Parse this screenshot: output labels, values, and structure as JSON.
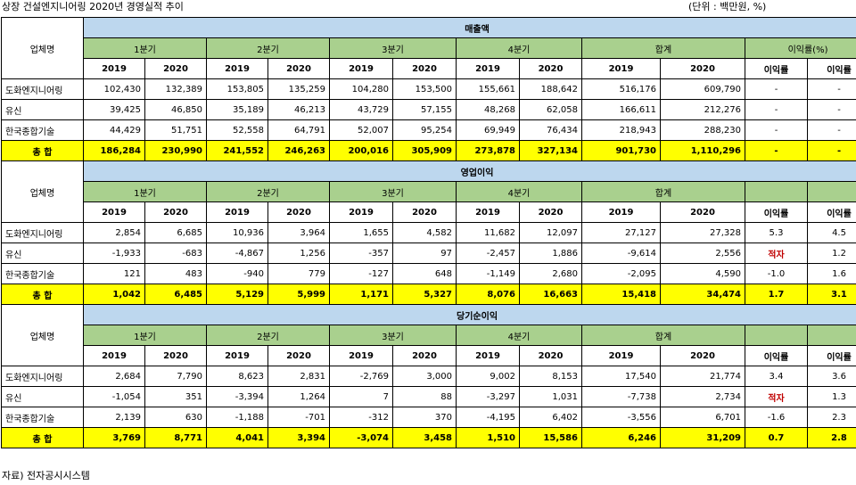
{
  "title": "상장 건설엔지니어링 2020년 경영실적 추이",
  "unit": "(단위 : 백만원, %)",
  "source": "자료) 전자공시시스템",
  "header": {
    "company_label": "업체명",
    "quarters": [
      "1분기",
      "2분기",
      "3분기",
      "4분기",
      "합계"
    ],
    "ratio_group_label": "이익률(%)",
    "years": [
      "2019",
      "2020"
    ],
    "ratio_label": "이익률"
  },
  "sections": [
    {
      "title": "매출액",
      "rows": [
        {
          "name": "도화엔지니어링",
          "values": [
            "102,430",
            "132,389",
            "153,805",
            "135,259",
            "104,280",
            "153,500",
            "155,661",
            "188,642",
            "516,176",
            "609,790"
          ],
          "ratios": [
            "-",
            "-"
          ]
        },
        {
          "name": "유신",
          "values": [
            "39,425",
            "46,850",
            "35,189",
            "46,213",
            "43,729",
            "57,155",
            "48,268",
            "62,058",
            "166,611",
            "212,276"
          ],
          "ratios": [
            "-",
            "-"
          ]
        },
        {
          "name": "한국종합기술",
          "values": [
            "44,429",
            "51,751",
            "52,558",
            "64,791",
            "52,007",
            "95,254",
            "69,949",
            "76,434",
            "218,943",
            "288,230"
          ],
          "ratios": [
            "-",
            "-"
          ]
        },
        {
          "name": "총 합",
          "total": true,
          "values": [
            "186,284",
            "230,990",
            "241,552",
            "246,263",
            "200,016",
            "305,909",
            "273,878",
            "327,134",
            "901,730",
            "1,110,296"
          ],
          "ratios": [
            "-",
            "-"
          ]
        }
      ]
    },
    {
      "title": "영업이익",
      "rows": [
        {
          "name": "도화엔지니어링",
          "values": [
            "2,854",
            "6,685",
            "10,936",
            "3,964",
            "1,655",
            "4,582",
            "11,682",
            "12,097",
            "27,127",
            "27,328"
          ],
          "ratios": [
            "5.3",
            "4.5"
          ]
        },
        {
          "name": "유신",
          "values": [
            "-1,933",
            "-683",
            "-4,867",
            "1,256",
            "-357",
            "97",
            "-2,457",
            "1,886",
            "-9,614",
            "2,556"
          ],
          "ratios": [
            "적자",
            "1.2"
          ]
        },
        {
          "name": "한국종합기술",
          "values": [
            "121",
            "483",
            "-940",
            "779",
            "-127",
            "648",
            "-1,149",
            "2,680",
            "-2,095",
            "4,590"
          ],
          "ratios": [
            "-1.0",
            "1.6"
          ]
        },
        {
          "name": "총 합",
          "total": true,
          "values": [
            "1,042",
            "6,485",
            "5,129",
            "5,999",
            "1,171",
            "5,327",
            "8,076",
            "16,663",
            "15,418",
            "34,474"
          ],
          "ratios": [
            "1.7",
            "3.1"
          ]
        }
      ]
    },
    {
      "title": "당기순이익",
      "rows": [
        {
          "name": "도화엔지니어링",
          "values": [
            "2,684",
            "7,790",
            "8,623",
            "2,831",
            "-2,769",
            "3,000",
            "9,002",
            "8,153",
            "17,540",
            "21,774"
          ],
          "ratios": [
            "3.4",
            "3.6"
          ]
        },
        {
          "name": "유신",
          "values": [
            "-1,054",
            "351",
            "-3,394",
            "1,264",
            "7",
            "88",
            "-3,297",
            "1,031",
            "-7,738",
            "2,734"
          ],
          "ratios": [
            "적자",
            "1.3"
          ]
        },
        {
          "name": "한국종합기술",
          "values": [
            "2,139",
            "630",
            "-1,188",
            "-701",
            "-312",
            "370",
            "-4,195",
            "6,402",
            "-3,556",
            "6,701"
          ],
          "ratios": [
            "-1.6",
            "2.3"
          ]
        },
        {
          "name": "총 합",
          "total": true,
          "values": [
            "3,769",
            "8,771",
            "4,041",
            "3,394",
            "-3,074",
            "3,458",
            "1,510",
            "15,586",
            "6,246",
            "31,209"
          ],
          "ratios": [
            "0.7",
            "2.8"
          ]
        }
      ]
    }
  ],
  "colors": {
    "section_header": "#bdd7ee",
    "quarter_header": "#a9d08e",
    "total_row": "#ffff00",
    "deficit_text": "#c00000"
  }
}
